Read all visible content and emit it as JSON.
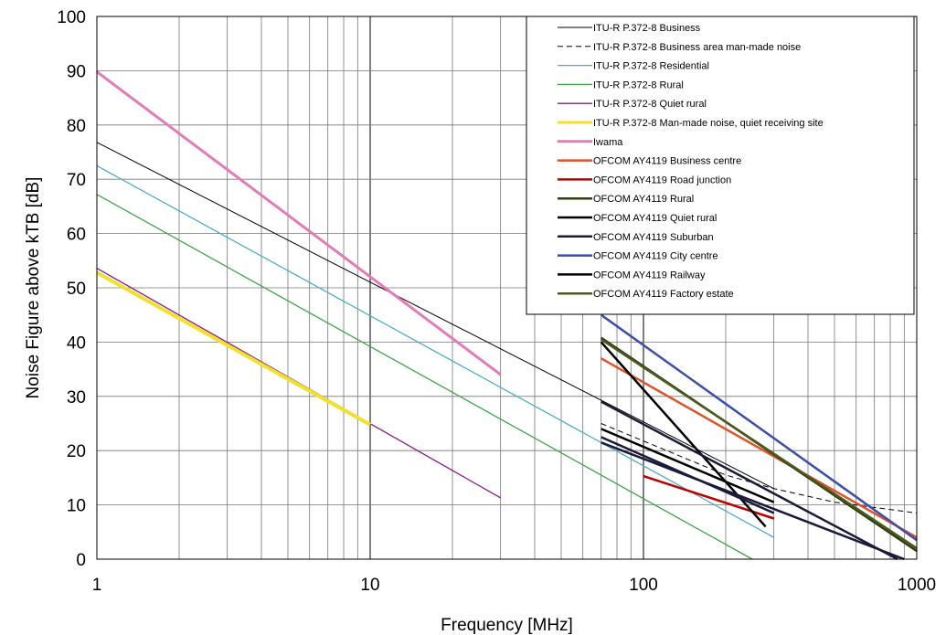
{
  "chart_data": {
    "type": "line",
    "title": "",
    "xlabel": "Frequency [MHz]",
    "ylabel": "Noise Figure above kTB [dB]",
    "xscale": "log",
    "xlim": [
      1,
      1000
    ],
    "ylim": [
      0,
      100
    ],
    "x_ticks": [
      1,
      10,
      100,
      1000
    ],
    "x_tick_labels": [
      "1",
      "10",
      "100",
      "1000"
    ],
    "y_ticks": [
      0,
      10,
      20,
      30,
      40,
      50,
      60,
      70,
      80,
      90,
      100
    ],
    "y_tick_labels": [
      "0",
      "10",
      "20",
      "30",
      "40",
      "50",
      "60",
      "70",
      "80",
      "90",
      "100"
    ],
    "grid": true,
    "legend_position": "top-right",
    "series": [
      {
        "name": "ITU-R P.372-8 Business",
        "color": "#000000",
        "width": 1,
        "dash": "",
        "points": [
          [
            1,
            76.8
          ],
          [
            300,
            13
          ]
        ]
      },
      {
        "name": "ITU-R P.372-8 Business area man-made noise",
        "color": "#000000",
        "width": 1,
        "dash": "6,4",
        "points": [
          [
            70,
            25
          ],
          [
            200,
            15.5
          ],
          [
            300,
            13
          ],
          [
            500,
            10.5
          ],
          [
            1000,
            8.5
          ]
        ]
      },
      {
        "name": "ITU-R P.372-8 Residential",
        "color": "#4bacc6",
        "width": 1.3,
        "dash": "",
        "points": [
          [
            1,
            72.5
          ],
          [
            300,
            4
          ]
        ]
      },
      {
        "name": "ITU-R P.372-8 Rural",
        "color": "#3fa64b",
        "width": 1.3,
        "dash": "",
        "points": [
          [
            1,
            67.2
          ],
          [
            250,
            0
          ]
        ]
      },
      {
        "name": "ITU-R P.372-8 Quiet rural",
        "color": "#8b1a8b",
        "width": 1.3,
        "dash": "",
        "points": [
          [
            1,
            53.6
          ],
          [
            30,
            11.3
          ]
        ]
      },
      {
        "name": "ITU-R P.372-8 Man-made noise, quiet receiving site",
        "color": "#f2e12a",
        "width": 4,
        "dash": "",
        "points": [
          [
            1,
            52.8
          ],
          [
            10,
            24.8
          ]
        ]
      },
      {
        "name": "Iwama",
        "color": "#e37bb8",
        "width": 3,
        "dash": "",
        "points": [
          [
            1,
            89.8
          ],
          [
            30,
            34
          ]
        ]
      },
      {
        "name": "OFCOM AY4119 Business centre",
        "color": "#e0522a",
        "width": 2.5,
        "dash": "",
        "points": [
          [
            70,
            37
          ],
          [
            1000,
            4
          ]
        ]
      },
      {
        "name": "OFCOM AY4119 Road junction",
        "color": "#c00000",
        "width": 2.5,
        "dash": "",
        "points": [
          [
            100,
            15.3
          ],
          [
            300,
            7.5
          ]
        ]
      },
      {
        "name": "OFCOM AY4119 Rural",
        "color": "#2e3d12",
        "width": 2.5,
        "dash": "",
        "points": [
          [
            70,
            40.8
          ],
          [
            1000,
            1.5
          ]
        ]
      },
      {
        "name": "OFCOM AY4119 Quiet rural",
        "color": "#000000",
        "width": 2.5,
        "dash": "",
        "points": [
          [
            70,
            40
          ],
          [
            280,
            6
          ]
        ]
      },
      {
        "name": "OFCOM AY4119 Suburban",
        "color": "#1a1a3a",
        "width": 2.5,
        "dash": "",
        "points": [
          [
            70,
            29
          ],
          [
            850,
            0
          ]
        ]
      },
      {
        "name": "OFCOM AY4119 City centre",
        "color": "#3c4fa8",
        "width": 2.5,
        "dash": "",
        "points": [
          [
            70,
            45
          ],
          [
            1000,
            3.5
          ]
        ]
      },
      {
        "name": "OFCOM AY4119 Railway",
        "color": "#000000",
        "width": 2.5,
        "dash": "",
        "points": [
          [
            70,
            24
          ],
          [
            300,
            10.5
          ]
        ]
      },
      {
        "name": "OFCOM AY4119 Factory estate",
        "color": "#4a5a1e",
        "width": 2.5,
        "dash": "",
        "points": [
          [
            70,
            40.5
          ],
          [
            1000,
            2
          ]
        ]
      },
      {
        "name": "",
        "color": "#1a1a3a",
        "width": 2.5,
        "dash": "",
        "points": [
          [
            70,
            22.5
          ],
          [
            300,
            8.5
          ]
        ]
      },
      {
        "name": "",
        "color": "#1a1a3a",
        "width": 2.5,
        "dash": "",
        "points": [
          [
            70,
            21.5
          ],
          [
            900,
            0
          ]
        ]
      }
    ]
  }
}
